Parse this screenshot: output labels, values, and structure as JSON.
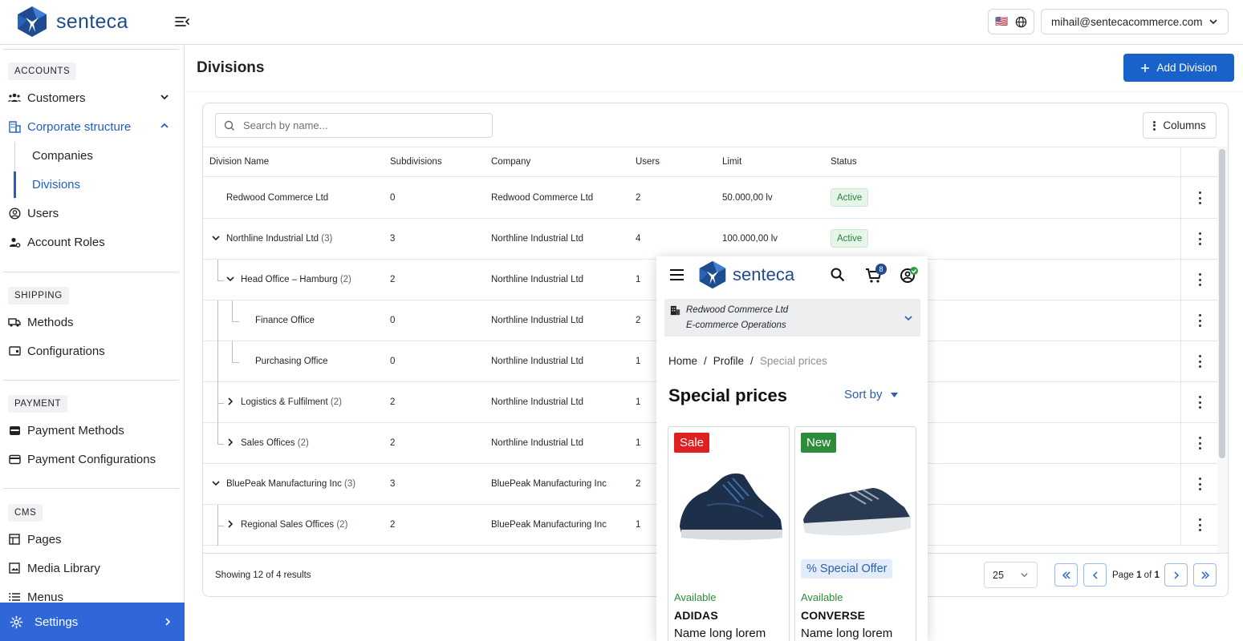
{
  "header": {
    "brand": "senteca",
    "flag": "🇺🇸",
    "user_email": "mihail@sentecacommerce.com"
  },
  "sidebar": {
    "sections": {
      "accounts": "ACCOUNTS",
      "shipping": "SHIPPING",
      "payment": "PAYMENT",
      "cms": "CMS"
    },
    "items": {
      "customers": "Customers",
      "corporate": "Corporate structure",
      "companies": "Companies",
      "divisions": "Divisions",
      "users": "Users",
      "roles": "Account Roles",
      "methods": "Methods",
      "configurations": "Configurations",
      "payment_methods": "Payment Methods",
      "payment_configurations": "Payment Configurations",
      "pages": "Pages",
      "media": "Media Library",
      "menus": "Menus",
      "settings": "Settings"
    }
  },
  "main": {
    "title": "Divisions",
    "add_label": "Add Division",
    "search_placeholder": "Search by name...",
    "columns_label": "Columns",
    "headers": [
      "Division Name",
      "Subdivisions",
      "Company",
      "Users",
      "Limit",
      "Status"
    ],
    "rows": [
      {
        "name": "Redwood Commerce Ltd",
        "count": "",
        "sub": "0",
        "company": "Redwood Commerce Ltd",
        "users": "2",
        "limit": "50.000,00 lv",
        "status": "Active"
      },
      {
        "name": "Northline Industrial Ltd",
        "count": "(3)",
        "sub": "3",
        "company": "Northline Industrial Ltd",
        "users": "4",
        "limit": "100.000,00 lv",
        "status": "Active"
      },
      {
        "name": "Head Office – Hamburg",
        "count": "(2)",
        "sub": "2",
        "company": "Northline Industrial Ltd",
        "users": "1",
        "limit": "",
        "status": ""
      },
      {
        "name": "Finance Office",
        "count": "",
        "sub": "0",
        "company": "Northline Industrial Ltd",
        "users": "2",
        "limit": "",
        "status": ""
      },
      {
        "name": "Purchasing Office",
        "count": "",
        "sub": "0",
        "company": "Northline Industrial Ltd",
        "users": "1",
        "limit": "",
        "status": ""
      },
      {
        "name": "Logistics & Fulfilment",
        "count": "(2)",
        "sub": "2",
        "company": "Northline Industrial Ltd",
        "users": "1",
        "limit": "",
        "status": ""
      },
      {
        "name": "Sales Offices",
        "count": "(2)",
        "sub": "2",
        "company": "Northline Industrial Ltd",
        "users": "1",
        "limit": "",
        "status": ""
      },
      {
        "name": "BluePeak Manufacturing Inc",
        "count": "(3)",
        "sub": "3",
        "company": "BluePeak Manufacturing Inc",
        "users": "2",
        "limit": "",
        "status": ""
      },
      {
        "name": "Regional Sales Offices",
        "count": "(2)",
        "sub": "2",
        "company": "BluePeak Manufacturing Inc",
        "users": "1",
        "limit": "",
        "status": ""
      }
    ],
    "footer": {
      "showing": "Showing 12 of 4 results",
      "page_size": "25",
      "page_prefix": "Page",
      "page_current": "1",
      "page_of": "of",
      "page_total": "1"
    }
  },
  "overlay": {
    "brand": "senteca",
    "cart_count": "8",
    "company_line1": "Redwood Commerce Ltd",
    "company_line2": "E-commerce Operations",
    "breadcrumb": {
      "home": "Home",
      "sep": "/",
      "profile": "Profile",
      "current": "Special prices"
    },
    "title": "Special prices",
    "sort_label": "Sort by",
    "products": [
      {
        "tag": "Sale",
        "tag_color": "#e02020",
        "offer": "",
        "availability": "Available",
        "brand": "ADIDAS",
        "name": "Name long lorem"
      },
      {
        "tag": "New",
        "tag_color": "#2e8b3a",
        "offer": "% Special Offer",
        "availability": "Available",
        "brand": "CONVERSE",
        "name": "Name long lorem"
      }
    ]
  }
}
